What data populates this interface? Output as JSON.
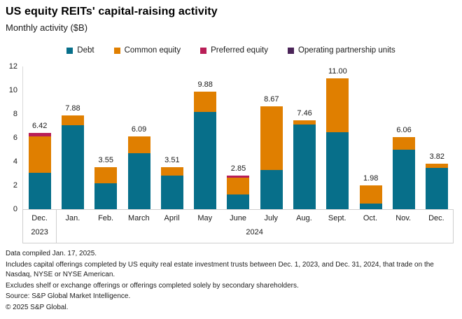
{
  "header": {
    "title": "US equity REITs' capital-raising activity",
    "subtitle": "Monthly activity ($B)"
  },
  "chart_data": {
    "type": "bar",
    "stacked": true,
    "title": "US equity REITs' capital-raising activity",
    "subtitle": "Monthly activity ($B)",
    "categories": [
      "Dec.",
      "Jan.",
      "Feb.",
      "March",
      "April",
      "May",
      "June",
      "July",
      "Aug.",
      "Sept.",
      "Oct.",
      "Nov.",
      "Dec."
    ],
    "year_groups": [
      {
        "label": "2023",
        "start": 0,
        "span": 1
      },
      {
        "label": "2024",
        "start": 1,
        "span": 12
      }
    ],
    "series": [
      {
        "name": "Debt",
        "key": "debt",
        "color": "#076f8a",
        "values": [
          3.05,
          7.05,
          2.2,
          4.7,
          2.8,
          8.2,
          1.25,
          3.3,
          7.1,
          6.45,
          0.45,
          5.0,
          3.45
        ]
      },
      {
        "name": "Common equity",
        "key": "common-equity",
        "color": "#e07f00",
        "values": [
          3.05,
          0.83,
          1.35,
          1.39,
          0.71,
          1.68,
          1.4,
          5.37,
          0.36,
          4.55,
          1.53,
          1.06,
          0.37
        ]
      },
      {
        "name": "Preferred equity",
        "key": "preferred-equity",
        "color": "#b91e57",
        "values": [
          0.32,
          0,
          0,
          0,
          0,
          0,
          0.2,
          0,
          0,
          0,
          0,
          0,
          0
        ]
      },
      {
        "name": "Operating partnership units",
        "key": "operating-partnership-units",
        "color": "#4a2458",
        "values": [
          0,
          0,
          0,
          0,
          0,
          0,
          0,
          0,
          0,
          0,
          0,
          0,
          0
        ]
      }
    ],
    "totals": [
      6.42,
      7.88,
      3.55,
      6.09,
      3.51,
      9.88,
      2.85,
      8.67,
      7.46,
      11.0,
      1.98,
      6.06,
      3.82
    ],
    "value_labels": [
      "6.42",
      "7.88",
      "3.55",
      "6.09",
      "3.51",
      "9.88",
      "2.85",
      "8.67",
      "7.46",
      "11.00",
      "1.98",
      "6.06",
      "3.82"
    ],
    "yticks": [
      0,
      2,
      4,
      6,
      8,
      10,
      12
    ],
    "ylim": [
      0,
      12
    ],
    "grid": false,
    "legend_position": "top"
  },
  "footer": {
    "lines": [
      "Data compiled Jan. 17, 2025.",
      "Includes capital offerings completed by US equity real estate investment trusts between Dec. 1, 2023, and Dec. 31, 2024, that trade on the Nasdaq, NYSE or NYSE American.",
      "Excludes shelf or exchange offerings or offerings completed solely by secondary shareholders.",
      "Source: S&P Global Market Intelligence.",
      "© 2025 S&P Global."
    ]
  }
}
